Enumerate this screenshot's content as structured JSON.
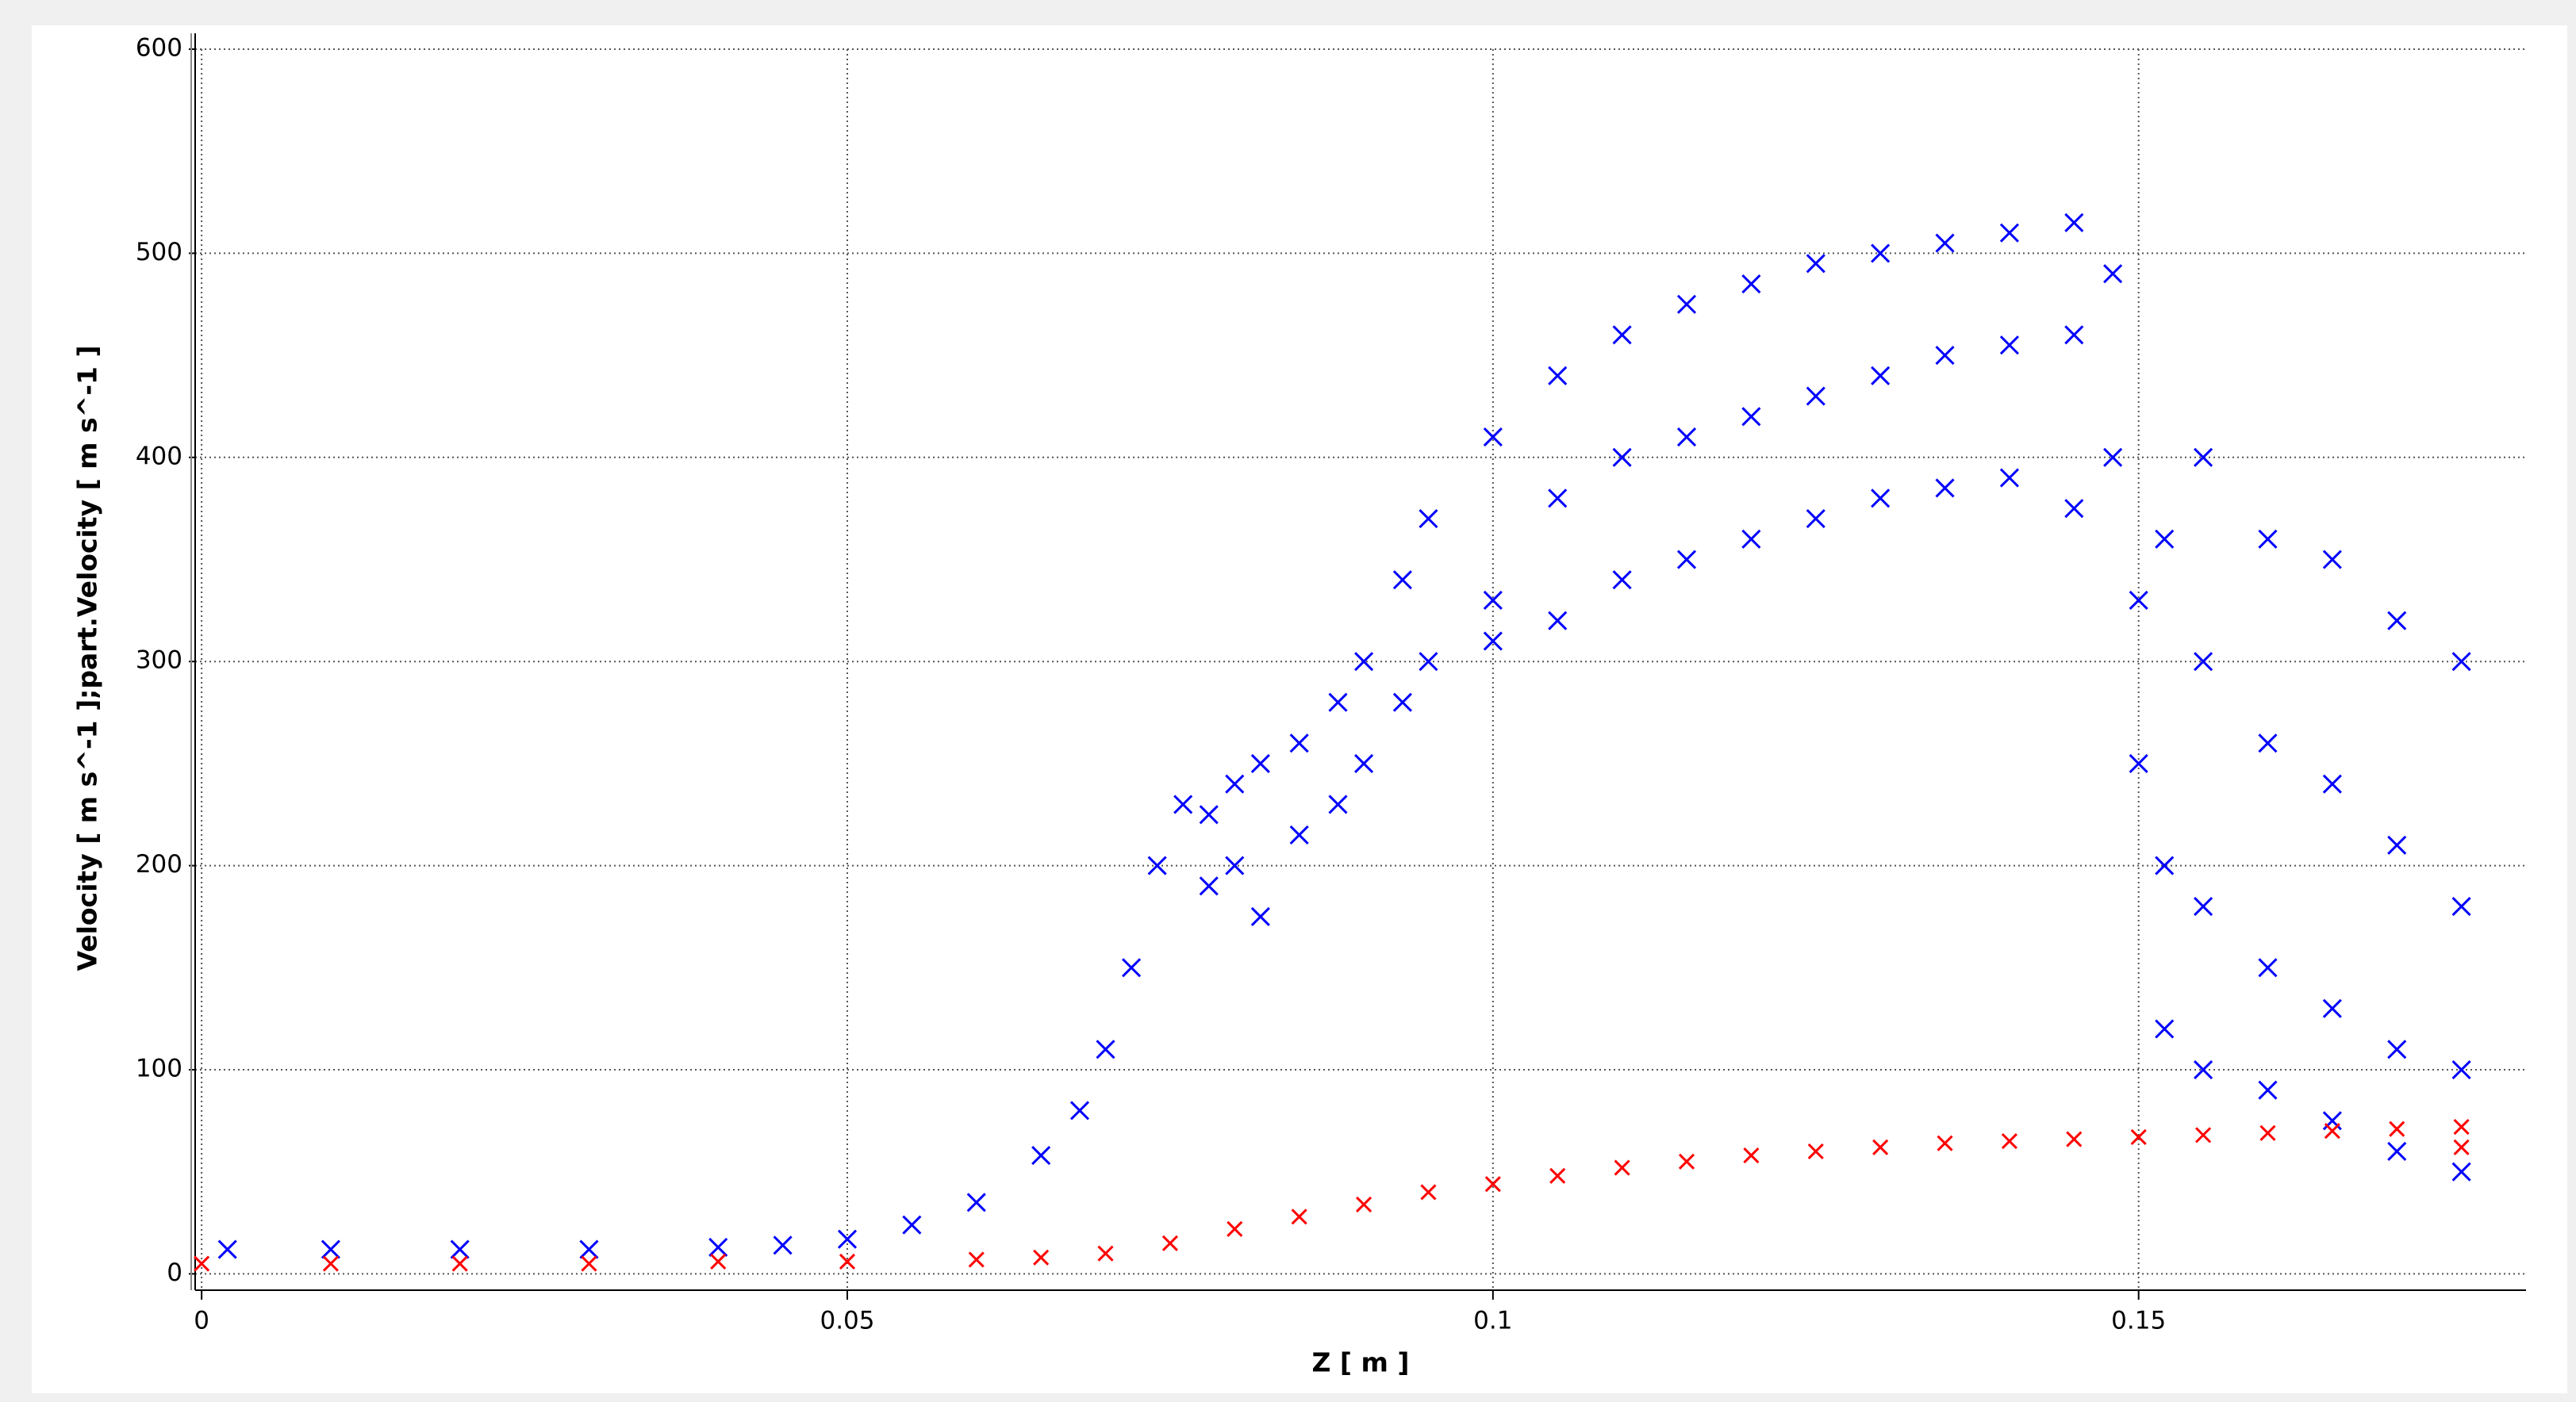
{
  "chart_data": {
    "type": "scatter",
    "x_label": "Z [ m ]",
    "y_label": "Velocity [ m s^-1 ];part.Velocity [ m s^-1 ]",
    "xlim": [
      -0.0005,
      0.18
    ],
    "ylim": [
      -8,
      600
    ],
    "xticks": [
      0,
      0.05,
      0.1,
      0.15
    ],
    "yticks": [
      0,
      100,
      200,
      300,
      400,
      500,
      600
    ],
    "grid": true,
    "series": [
      {
        "color": "#0000ff",
        "x": [
          0.002,
          0.01,
          0.02,
          0.03,
          0.04,
          0.045,
          0.05,
          0.055,
          0.06,
          0.065,
          0.068,
          0.07,
          0.072,
          0.074,
          0.076,
          0.078,
          0.078,
          0.08,
          0.08,
          0.082,
          0.082,
          0.085,
          0.085,
          0.088,
          0.088,
          0.09,
          0.09,
          0.093,
          0.093,
          0.095,
          0.095,
          0.1,
          0.1,
          0.1,
          0.105,
          0.105,
          0.105,
          0.11,
          0.11,
          0.11,
          0.115,
          0.115,
          0.115,
          0.12,
          0.12,
          0.12,
          0.125,
          0.125,
          0.125,
          0.13,
          0.13,
          0.13,
          0.135,
          0.135,
          0.135,
          0.14,
          0.14,
          0.14,
          0.145,
          0.145,
          0.145,
          0.148,
          0.148,
          0.15,
          0.15,
          0.152,
          0.152,
          0.152,
          0.155,
          0.155,
          0.155,
          0.155,
          0.16,
          0.16,
          0.16,
          0.16,
          0.165,
          0.165,
          0.165,
          0.165,
          0.17,
          0.17,
          0.17,
          0.17,
          0.175,
          0.175,
          0.175,
          0.175
        ],
        "values": [
          12,
          12,
          12,
          12,
          13,
          14,
          17,
          24,
          35,
          58,
          80,
          110,
          150,
          200,
          230,
          225,
          190,
          240,
          200,
          250,
          175,
          260,
          215,
          280,
          230,
          300,
          250,
          340,
          280,
          370,
          300,
          410,
          330,
          310,
          440,
          380,
          320,
          460,
          400,
          340,
          475,
          410,
          350,
          485,
          420,
          360,
          495,
          430,
          370,
          500,
          440,
          380,
          505,
          450,
          385,
          510,
          455,
          390,
          515,
          460,
          375,
          490,
          400,
          330,
          250,
          360,
          200,
          120,
          400,
          300,
          180,
          100,
          360,
          260,
          150,
          90,
          350,
          240,
          130,
          75,
          320,
          210,
          110,
          60,
          300,
          180,
          100,
          50
        ]
      },
      {
        "color": "#ff0000",
        "x": [
          0.0,
          0.01,
          0.02,
          0.03,
          0.04,
          0.05,
          0.06,
          0.065,
          0.07,
          0.075,
          0.08,
          0.085,
          0.09,
          0.095,
          0.1,
          0.105,
          0.11,
          0.115,
          0.12,
          0.125,
          0.13,
          0.135,
          0.14,
          0.145,
          0.15,
          0.155,
          0.16,
          0.165,
          0.17,
          0.175,
          0.175
        ],
        "values": [
          5,
          5,
          5,
          5,
          6,
          6,
          7,
          8,
          10,
          15,
          22,
          28,
          34,
          40,
          44,
          48,
          52,
          55,
          58,
          60,
          62,
          64,
          65,
          66,
          67,
          68,
          69,
          70,
          71,
          72,
          62
        ]
      }
    ]
  }
}
